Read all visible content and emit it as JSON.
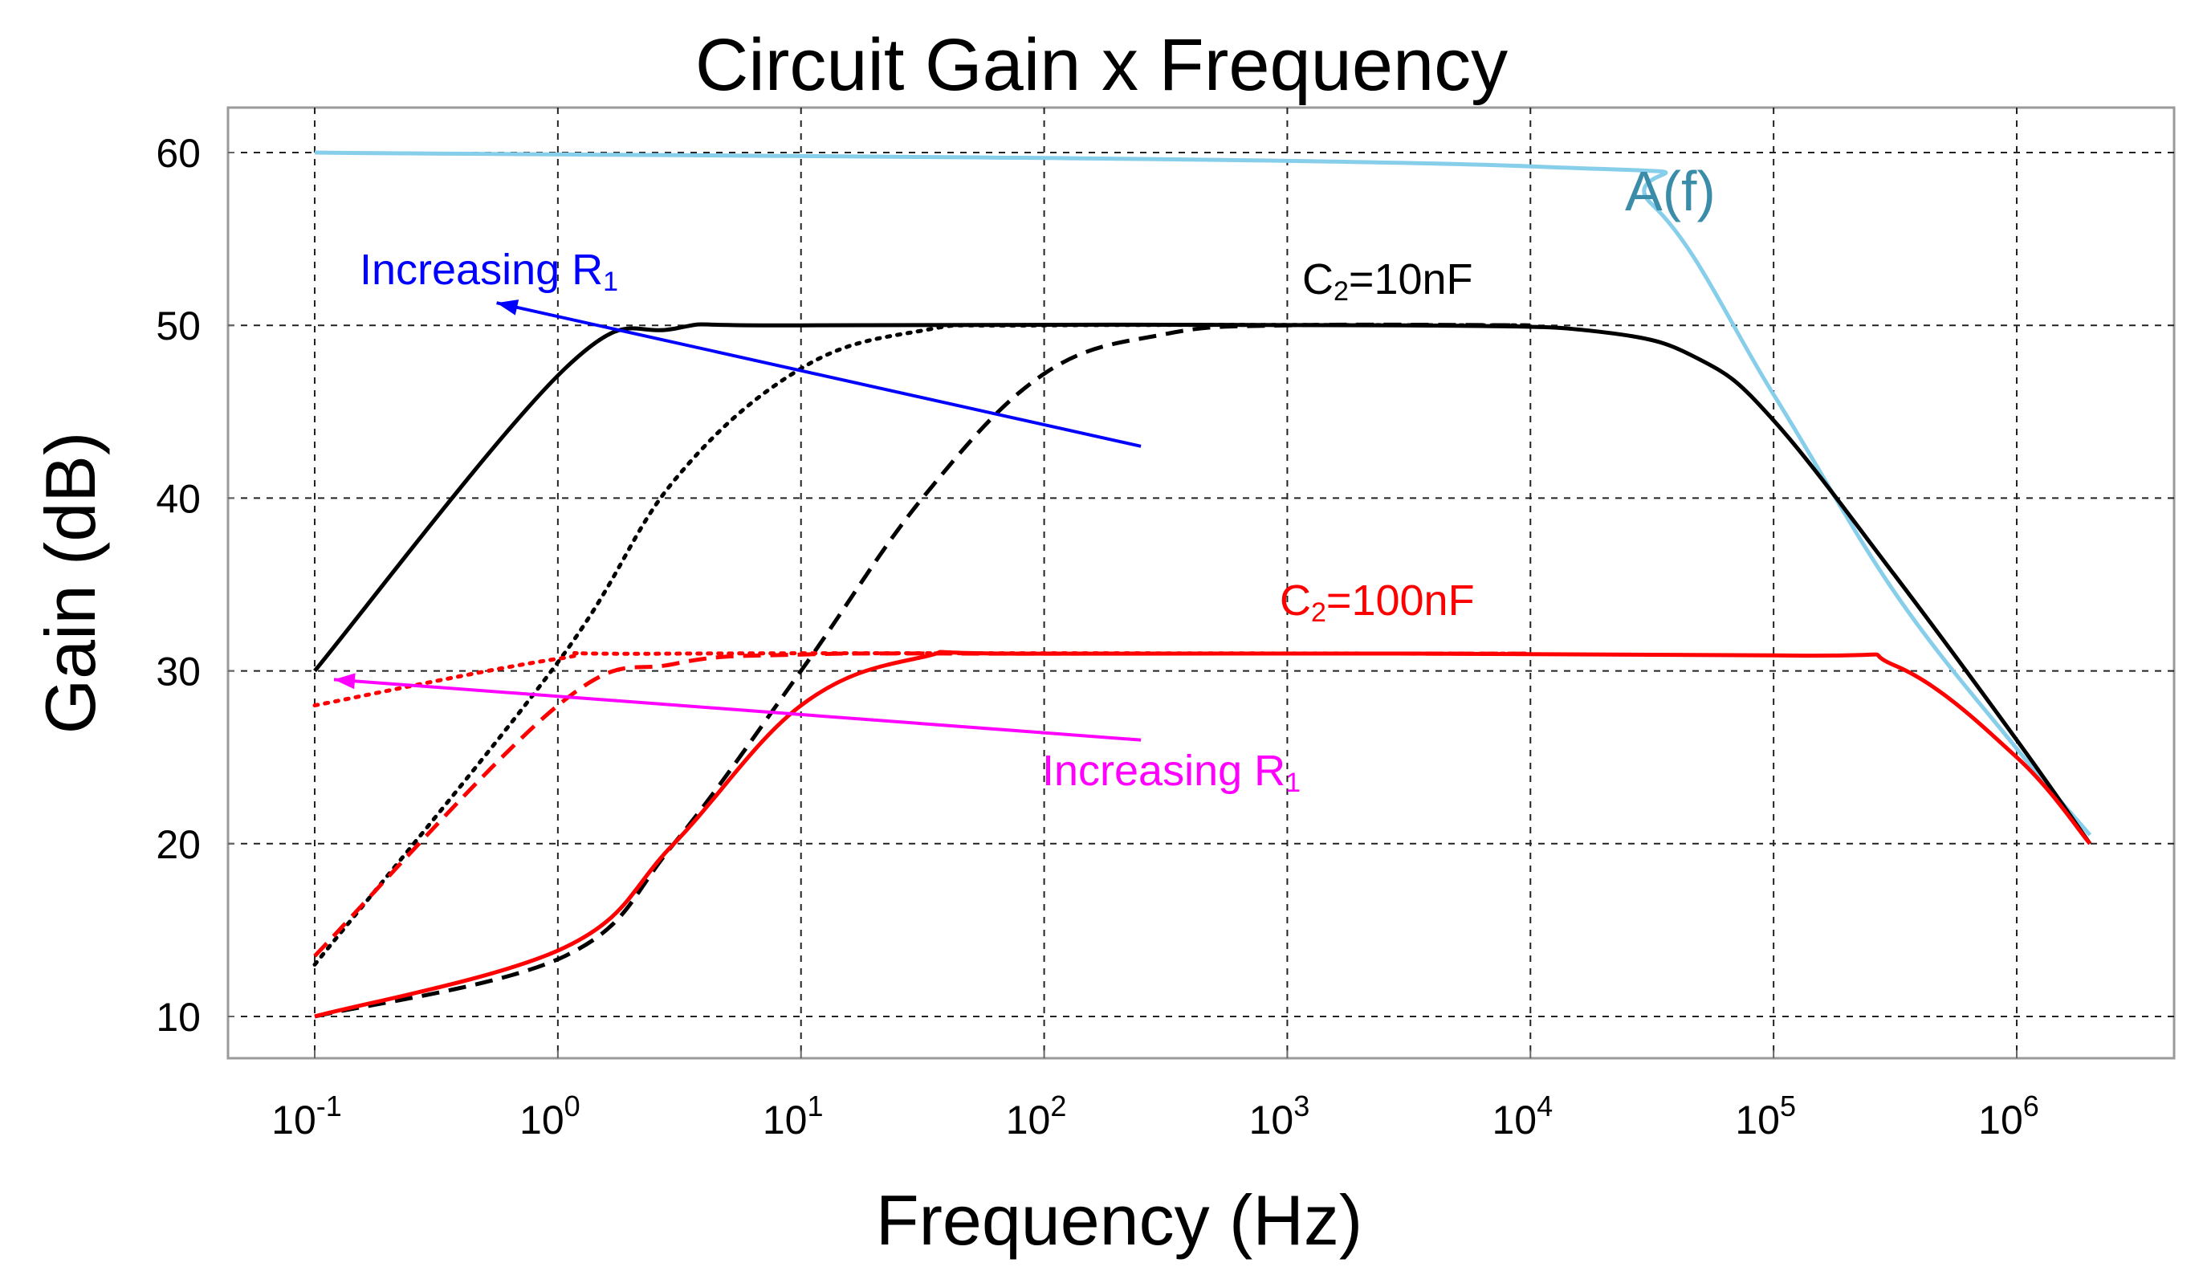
{
  "chart_data": {
    "type": "line",
    "title": "Circuit Gain x Frequency",
    "xlabel": "Frequency (Hz)",
    "ylabel": "Gain (dB)",
    "xscale": "log",
    "xlim": [
      0.1,
      2000000
    ],
    "ylim": [
      7.5,
      62.5
    ],
    "grid": true,
    "x_ticks": [
      {
        "base": "10",
        "exp": "-1",
        "value": 0.1
      },
      {
        "base": "10",
        "exp": "0",
        "value": 1
      },
      {
        "base": "10",
        "exp": "1",
        "value": 10
      },
      {
        "base": "10",
        "exp": "2",
        "value": 100
      },
      {
        "base": "10",
        "exp": "3",
        "value": 1000
      },
      {
        "base": "10",
        "exp": "4",
        "value": 10000
      },
      {
        "base": "10",
        "exp": "5",
        "value": 100000
      },
      {
        "base": "10",
        "exp": "6",
        "value": 1000000
      }
    ],
    "y_ticks": [
      "10",
      "20",
      "30",
      "40",
      "50",
      "60"
    ],
    "series": [
      {
        "color": "#87CEEB",
        "dash": "solid",
        "points": [
          [
            0.1,
            60
          ],
          [
            10000,
            59.2
          ],
          [
            31623,
            57
          ],
          [
            100000,
            46
          ],
          [
            316228,
            34.5
          ],
          [
            1000000,
            25.5
          ],
          [
            2000000,
            20.5
          ]
        ]
      },
      {
        "color": "#000000",
        "dash": "solid",
        "points": [
          [
            0.1,
            30
          ],
          [
            1.07,
            47.5
          ],
          [
            3,
            49.8
          ],
          [
            10,
            50
          ],
          [
            3000,
            50
          ],
          [
            20000,
            49.6
          ],
          [
            50000,
            48
          ],
          [
            100000,
            44.5
          ],
          [
            316228,
            35.5
          ],
          [
            1000000,
            26
          ],
          [
            2000000,
            20
          ]
        ]
      },
      {
        "color": "#000000",
        "dash": "dotted",
        "points": [
          [
            0.1,
            13
          ],
          [
            1,
            30.5
          ],
          [
            3,
            41
          ],
          [
            10,
            47.5
          ],
          [
            31.6,
            49.7
          ],
          [
            100,
            50
          ],
          [
            10000,
            50
          ]
        ]
      },
      {
        "color": "#000000",
        "dash": "dashed",
        "points": [
          [
            0.1,
            10
          ],
          [
            1.07,
            13.5
          ],
          [
            3,
            20
          ],
          [
            10,
            30
          ],
          [
            31.6,
            40
          ],
          [
            100,
            47.2
          ],
          [
            316,
            49.5
          ],
          [
            1000,
            50
          ],
          [
            10000,
            50
          ]
        ]
      },
      {
        "color": "#FF0000",
        "dash": "solid",
        "points": [
          [
            0.1,
            10
          ],
          [
            1.07,
            14
          ],
          [
            3,
            20
          ],
          [
            10,
            28
          ],
          [
            31.6,
            30.8
          ],
          [
            100,
            31
          ],
          [
            100000,
            30.9
          ],
          [
            316228,
            30.3
          ],
          [
            1000000,
            25
          ],
          [
            2000000,
            20
          ]
        ]
      },
      {
        "color": "#FF0000",
        "dash": "dashed",
        "points": [
          [
            0.1,
            13.5
          ],
          [
            1,
            28
          ],
          [
            3,
            30.4
          ],
          [
            10,
            30.95
          ],
          [
            100,
            31
          ],
          [
            10000,
            31
          ]
        ]
      },
      {
        "color": "#FF0000",
        "dash": "dotted",
        "points": [
          [
            0.1,
            28
          ],
          [
            1,
            30.7
          ],
          [
            3,
            31
          ],
          [
            10000,
            31
          ]
        ]
      }
    ],
    "annotations": [
      {
        "main": "Increasing R",
        "sub": "1",
        "color": "#0000FF",
        "arrow_from": [
          250,
          43
        ],
        "arrow_to": [
          0.56,
          51.3
        ]
      },
      {
        "main": "Increasing R",
        "sub": "1",
        "color": "#FF00FF",
        "arrow_from": [
          250,
          26
        ],
        "arrow_to": [
          0.12,
          29.5
        ]
      },
      {
        "main": "C",
        "sub": "2",
        "rest": "=10nF",
        "color": "#000000"
      },
      {
        "main": "C",
        "sub": "2",
        "rest": "=100nF",
        "color": "#FF0000"
      },
      {
        "main": "A(f)",
        "color": "#3A8CA8"
      }
    ]
  }
}
